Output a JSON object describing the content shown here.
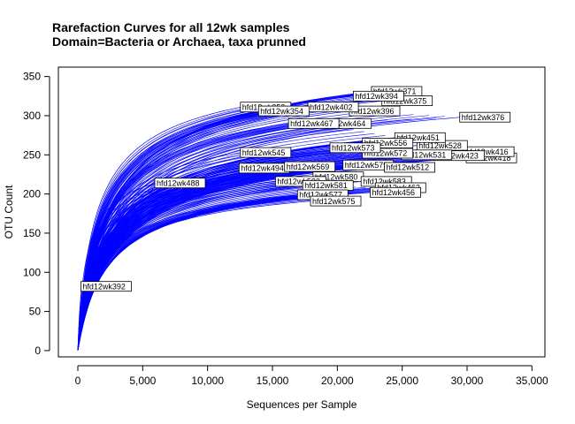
{
  "chart_data": {
    "type": "line",
    "title": "Rarefaction Curves for all 12wk samples",
    "subtitle": "Domain=Bacteria or Archaea, taxa prunned",
    "xlabel": "Sequences per Sample",
    "ylabel": "OTU Count",
    "xlim": [
      -1500,
      36000
    ],
    "ylim": [
      -8,
      362
    ],
    "x_ticks": [
      0,
      5000,
      10000,
      15000,
      20000,
      25000,
      30000,
      35000
    ],
    "x_tick_labels": [
      "0",
      "5,000",
      "10,000",
      "15,000",
      "20,000",
      "25,000",
      "30,000",
      "35,000"
    ],
    "y_ticks": [
      0,
      50,
      100,
      150,
      200,
      250,
      300,
      350
    ],
    "y_tick_labels": [
      "0",
      "50",
      "100",
      "150",
      "200",
      "250",
      "300",
      "350"
    ],
    "line_color": "#0000ff",
    "series": [
      {
        "name": "hfd12wk392",
        "x_end": 300,
        "y_end": 82
      },
      {
        "name": "hfd12wk488",
        "x_end": 6000,
        "y_end": 214
      },
      {
        "name": "hfd12wk376",
        "x_end": 29500,
        "y_end": 298
      },
      {
        "name": "hfd12wk418",
        "x_end": 30000,
        "y_end": 246
      },
      {
        "name": "hfd12wk416",
        "x_end": 29800,
        "y_end": 254
      },
      {
        "name": "hfd12wk423",
        "x_end": 27500,
        "y_end": 249
      },
      {
        "name": "hfd12wk528",
        "x_end": 26200,
        "y_end": 262
      },
      {
        "name": "hfd12wk531",
        "x_end": 25000,
        "y_end": 250
      },
      {
        "name": "hfd12wk371",
        "x_end": 22700,
        "y_end": 331
      },
      {
        "name": "hfd12wk375",
        "x_end": 23500,
        "y_end": 319
      },
      {
        "name": "hfd12wk394",
        "x_end": 21300,
        "y_end": 325
      },
      {
        "name": "hfd12wk396",
        "x_end": 21000,
        "y_end": 306
      },
      {
        "name": "hfd12wk402",
        "x_end": 17800,
        "y_end": 311
      },
      {
        "name": "hfd12wk353",
        "x_end": 12600,
        "y_end": 311
      },
      {
        "name": "hfd12wk354",
        "x_end": 14000,
        "y_end": 306
      },
      {
        "name": "hfd12wk464",
        "x_end": 18800,
        "y_end": 290
      },
      {
        "name": "hfd12wk467",
        "x_end": 16300,
        "y_end": 290
      },
      {
        "name": "hfd12wk451",
        "x_end": 24500,
        "y_end": 272
      },
      {
        "name": "hfd12wk556",
        "x_end": 22000,
        "y_end": 265
      },
      {
        "name": "hfd12wk572",
        "x_end": 22000,
        "y_end": 252
      },
      {
        "name": "hfd12wk573",
        "x_end": 19500,
        "y_end": 259
      },
      {
        "name": "hfd12wk579",
        "x_end": 20500,
        "y_end": 237
      },
      {
        "name": "hfd12wk512",
        "x_end": 23700,
        "y_end": 234
      },
      {
        "name": "hfd12wk494",
        "x_end": 12500,
        "y_end": 233
      },
      {
        "name": "hfd12wk545",
        "x_end": 12600,
        "y_end": 253
      },
      {
        "name": "hfd12wk569",
        "x_end": 16000,
        "y_end": 235
      },
      {
        "name": "hfd12wk580",
        "x_end": 18200,
        "y_end": 222
      },
      {
        "name": "hfd12wk582",
        "x_end": 15300,
        "y_end": 216
      },
      {
        "name": "hfd12wk581",
        "x_end": 17400,
        "y_end": 211
      },
      {
        "name": "hfd12wk583",
        "x_end": 21900,
        "y_end": 216
      },
      {
        "name": "hfd12wk463",
        "x_end": 23000,
        "y_end": 208
      },
      {
        "name": "hfd12wk577",
        "x_end": 17000,
        "y_end": 199
      },
      {
        "name": "hfd12wk575",
        "x_end": 18000,
        "y_end": 191
      },
      {
        "name": "hfd12wk456",
        "x_end": 22600,
        "y_end": 202
      }
    ]
  }
}
